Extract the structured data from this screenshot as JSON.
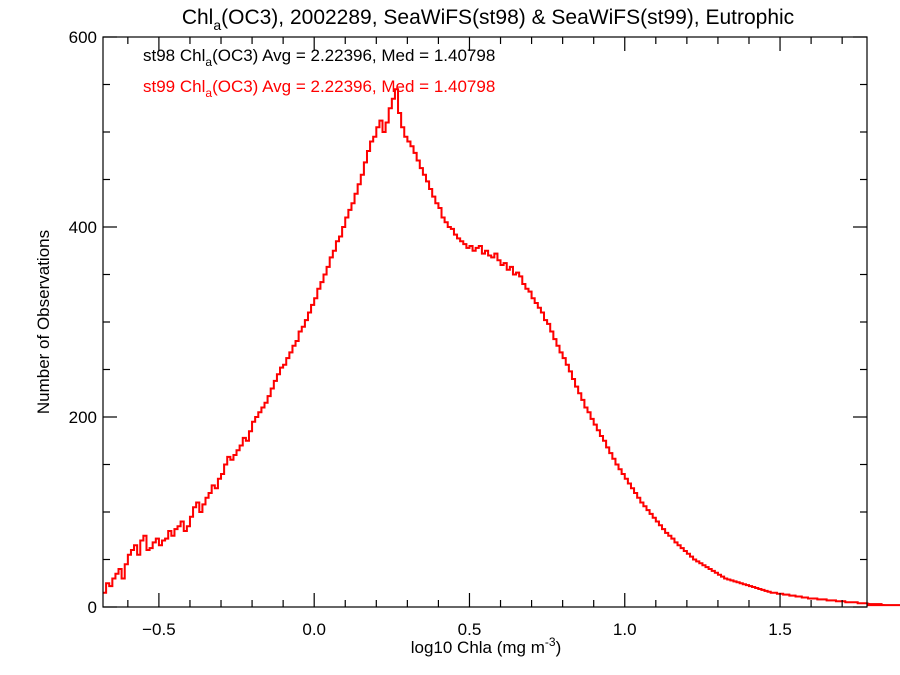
{
  "chart_data": {
    "type": "histogram",
    "title": {
      "prefix": "Chl",
      "sub": "a",
      "rest": "(OC3), 2002289, SeaWiFS(st98) & SeaWiFS(st99), Eutrophic"
    },
    "xlabel": {
      "main": "log10 Chla (mg m",
      "sup": "-3",
      "close": ")"
    },
    "ylabel": "Number of Observations",
    "xlim": [
      -0.68,
      1.78
    ],
    "ylim": [
      0,
      600
    ],
    "xticks": [
      -0.5,
      0.0,
      0.5,
      1.0,
      1.5
    ],
    "xtick_labels": [
      "−0.5",
      "0.0",
      "0.5",
      "1.0",
      "1.5"
    ],
    "yticks": [
      0,
      200,
      400,
      600
    ],
    "ytick_labels": [
      "0",
      "200",
      "400",
      "600"
    ],
    "legend": [
      {
        "series": "st98",
        "color": "#000000",
        "prefix": "st98 Chl",
        "sub": "a",
        "rest": "(OC3) Avg = 2.22396, Med = 1.40798"
      },
      {
        "series": "st99",
        "color": "#ff0000",
        "prefix": "st99 Chl",
        "sub": "a",
        "rest": "(OC3) Avg = 2.22396, Med = 1.40798"
      }
    ],
    "bin_width": 0.01,
    "series": [
      {
        "name": "st98",
        "color": "#000000",
        "x_start": -0.68,
        "x_step": 0.01,
        "counts": [
          15,
          25,
          22,
          30,
          35,
          40,
          30,
          45,
          55,
          60,
          65,
          55,
          70,
          75,
          60,
          62,
          68,
          72,
          65,
          70,
          72,
          80,
          75,
          82,
          85,
          90,
          80,
          85,
          95,
          105,
          110,
          100,
          108,
          115,
          120,
          128,
          125,
          135,
          140,
          150,
          158,
          155,
          160,
          165,
          170,
          178,
          175,
          185,
          195,
          200,
          205,
          210,
          215,
          222,
          230,
          238,
          245,
          252,
          255,
          262,
          268,
          275,
          280,
          290,
          295,
          302,
          310,
          318,
          325,
          335,
          342,
          350,
          358,
          368,
          375,
          385,
          390,
          400,
          410,
          418,
          425,
          435,
          445,
          455,
          468,
          480,
          490,
          495,
          505,
          512,
          500,
          510,
          525,
          535,
          545,
          520,
          505,
          495,
          490,
          485,
          478,
          470,
          462,
          455,
          448,
          440,
          432,
          425,
          420,
          410,
          405,
          400,
          398,
          392,
          388,
          385,
          382,
          378,
          380,
          375,
          378,
          380,
          372,
          375,
          370,
          368,
          372,
          365,
          360,
          362,
          355,
          358,
          350,
          352,
          348,
          340,
          335,
          332,
          325,
          320,
          315,
          310,
          302,
          298,
          290,
          282,
          275,
          268,
          262,
          255,
          248,
          240,
          232,
          225,
          218,
          210,
          205,
          198,
          192,
          186,
          180,
          175,
          168,
          162,
          156,
          150,
          145,
          140,
          135,
          130,
          125,
          120,
          115,
          110,
          106,
          102,
          98,
          94,
          90,
          86,
          82,
          78,
          75,
          72,
          68,
          65,
          62,
          59,
          56,
          53,
          50,
          48,
          46,
          44,
          42,
          40,
          38,
          36,
          34,
          32,
          30,
          29,
          28,
          27,
          26,
          25,
          24,
          23,
          22,
          21,
          20,
          19,
          18,
          17,
          16,
          15,
          15,
          14,
          14,
          13,
          13,
          12,
          12,
          11,
          11,
          10,
          10,
          9,
          9,
          9,
          8,
          8,
          8,
          7,
          7,
          7,
          6,
          6,
          6,
          5,
          5,
          5,
          5,
          4,
          4,
          4,
          4,
          3,
          3,
          3,
          3,
          3,
          2,
          2,
          2,
          2,
          2,
          2,
          2
        ]
      },
      {
        "name": "st99",
        "color": "#ff0000",
        "x_start": -0.68,
        "x_step": 0.01,
        "counts": [
          15,
          25,
          22,
          30,
          35,
          40,
          30,
          45,
          55,
          60,
          65,
          55,
          70,
          75,
          60,
          62,
          68,
          72,
          65,
          70,
          72,
          80,
          75,
          82,
          85,
          90,
          80,
          85,
          95,
          105,
          110,
          100,
          108,
          115,
          120,
          128,
          125,
          135,
          140,
          150,
          158,
          155,
          160,
          165,
          170,
          178,
          175,
          185,
          195,
          200,
          205,
          210,
          215,
          222,
          230,
          238,
          245,
          252,
          255,
          262,
          268,
          275,
          280,
          290,
          295,
          302,
          310,
          318,
          325,
          335,
          342,
          350,
          358,
          368,
          375,
          385,
          390,
          400,
          410,
          418,
          425,
          435,
          445,
          455,
          468,
          480,
          490,
          495,
          505,
          512,
          500,
          510,
          525,
          535,
          545,
          520,
          505,
          495,
          490,
          485,
          478,
          470,
          462,
          455,
          448,
          440,
          432,
          425,
          420,
          410,
          405,
          400,
          398,
          392,
          388,
          385,
          382,
          378,
          380,
          375,
          378,
          380,
          372,
          375,
          370,
          368,
          372,
          365,
          360,
          362,
          355,
          358,
          350,
          352,
          348,
          340,
          335,
          332,
          325,
          320,
          315,
          310,
          302,
          298,
          290,
          282,
          275,
          268,
          262,
          255,
          248,
          240,
          232,
          225,
          218,
          210,
          205,
          198,
          192,
          186,
          180,
          175,
          168,
          162,
          156,
          150,
          145,
          140,
          135,
          130,
          125,
          120,
          115,
          110,
          106,
          102,
          98,
          94,
          90,
          86,
          82,
          78,
          75,
          72,
          68,
          65,
          62,
          59,
          56,
          53,
          50,
          48,
          46,
          44,
          42,
          40,
          38,
          36,
          34,
          32,
          30,
          29,
          28,
          27,
          26,
          25,
          24,
          23,
          22,
          21,
          20,
          19,
          18,
          17,
          16,
          15,
          15,
          14,
          14,
          13,
          13,
          12,
          12,
          11,
          11,
          10,
          10,
          9,
          9,
          9,
          8,
          8,
          8,
          7,
          7,
          7,
          6,
          6,
          6,
          5,
          5,
          5,
          5,
          4,
          4,
          4,
          4,
          3,
          3,
          3,
          3,
          3,
          2,
          2,
          2,
          2,
          2,
          2,
          2
        ]
      }
    ]
  }
}
